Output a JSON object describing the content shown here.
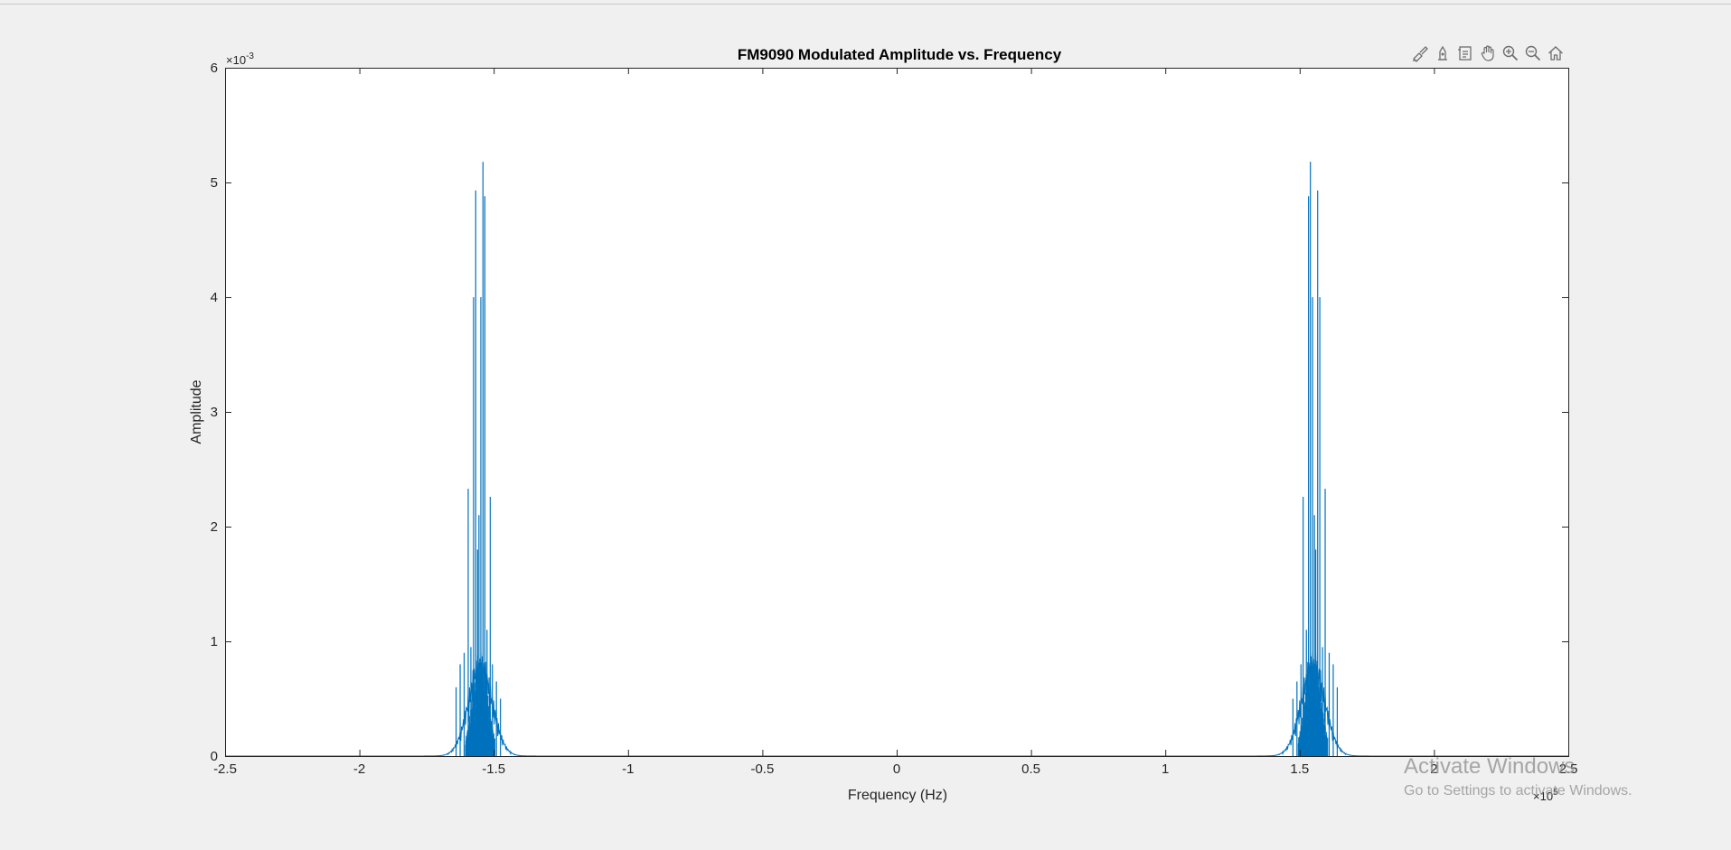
{
  "window": {
    "toolbar": [
      {
        "name": "brush-icon",
        "title": "Brush"
      },
      {
        "name": "data-tips-icon",
        "title": "Data Tips"
      },
      {
        "name": "restore-view-icon",
        "title": "Restore View"
      },
      {
        "name": "pan-hand-icon",
        "title": "Pan"
      },
      {
        "name": "zoom-in-icon",
        "title": "Zoom In"
      },
      {
        "name": "zoom-out-icon",
        "title": "Zoom Out"
      },
      {
        "name": "home-icon",
        "title": "Home"
      }
    ]
  },
  "watermark": {
    "title": "Activate Windows",
    "subtitle": "Go to Settings to activate Windows."
  },
  "chart_data": {
    "type": "line",
    "title": "FM9090 Modulated Amplitude vs. Frequency",
    "xlabel": "Frequency (Hz)",
    "ylabel": "Amplitude",
    "xlim": [
      -250000,
      250000
    ],
    "ylim": [
      0,
      0.006
    ],
    "x_multiplier": "×10",
    "x_multiplier_exp": "5",
    "y_multiplier": "×10",
    "y_multiplier_exp": "-3",
    "x_ticks": [
      -250000,
      -200000,
      -150000,
      -100000,
      -50000,
      0,
      50000,
      100000,
      150000,
      200000,
      250000
    ],
    "x_tick_labels": [
      "-2.5",
      "-2",
      "-1.5",
      "-1",
      "-0.5",
      "0",
      "0.5",
      "1",
      "1.5",
      "2",
      "2.5"
    ],
    "y_ticks": [
      0,
      0.001,
      0.002,
      0.003,
      0.004,
      0.005,
      0.006
    ],
    "y_tick_labels": [
      "0",
      "1",
      "2",
      "3",
      "4",
      "5",
      "6"
    ],
    "grid": false,
    "line_color": "#0072bd",
    "series": [
      {
        "peaks": [
          {
            "x": -164000,
            "y": 0.0006
          },
          {
            "x": -162500,
            "y": 0.0008
          },
          {
            "x": -161000,
            "y": 0.0009
          },
          {
            "x": -159500,
            "y": 0.00233
          },
          {
            "x": -158500,
            "y": 0.00095
          },
          {
            "x": -157500,
            "y": 0.004
          },
          {
            "x": -156700,
            "y": 0.00493
          },
          {
            "x": -156000,
            "y": 0.0018
          },
          {
            "x": -155500,
            "y": 0.0021
          },
          {
            "x": -154800,
            "y": 0.004
          },
          {
            "x": -154000,
            "y": 0.00518
          },
          {
            "x": -153300,
            "y": 0.00488
          },
          {
            "x": -152500,
            "y": 0.0011
          },
          {
            "x": -151300,
            "y": 0.00226
          },
          {
            "x": -150500,
            "y": 0.0008
          },
          {
            "x": -149000,
            "y": 0.00065
          },
          {
            "x": -147500,
            "y": 0.0005
          },
          {
            "x": 147500,
            "y": 0.0005
          },
          {
            "x": 149000,
            "y": 0.00065
          },
          {
            "x": 150500,
            "y": 0.0008
          },
          {
            "x": 151300,
            "y": 0.00226
          },
          {
            "x": 152500,
            "y": 0.0011
          },
          {
            "x": 153300,
            "y": 0.00488
          },
          {
            "x": 154000,
            "y": 0.00518
          },
          {
            "x": 154800,
            "y": 0.004
          },
          {
            "x": 155500,
            "y": 0.0021
          },
          {
            "x": 156000,
            "y": 0.0018
          },
          {
            "x": 156700,
            "y": 0.00493
          },
          {
            "x": 157500,
            "y": 0.004
          },
          {
            "x": 158500,
            "y": 0.00095
          },
          {
            "x": 159500,
            "y": 0.00233
          },
          {
            "x": 161000,
            "y": 0.0009
          },
          {
            "x": 162500,
            "y": 0.0008
          },
          {
            "x": 164000,
            "y": 0.0006
          }
        ],
        "carrier_centers": [
          -155000,
          155000
        ],
        "envelope_half_width": 7000
      }
    ]
  }
}
